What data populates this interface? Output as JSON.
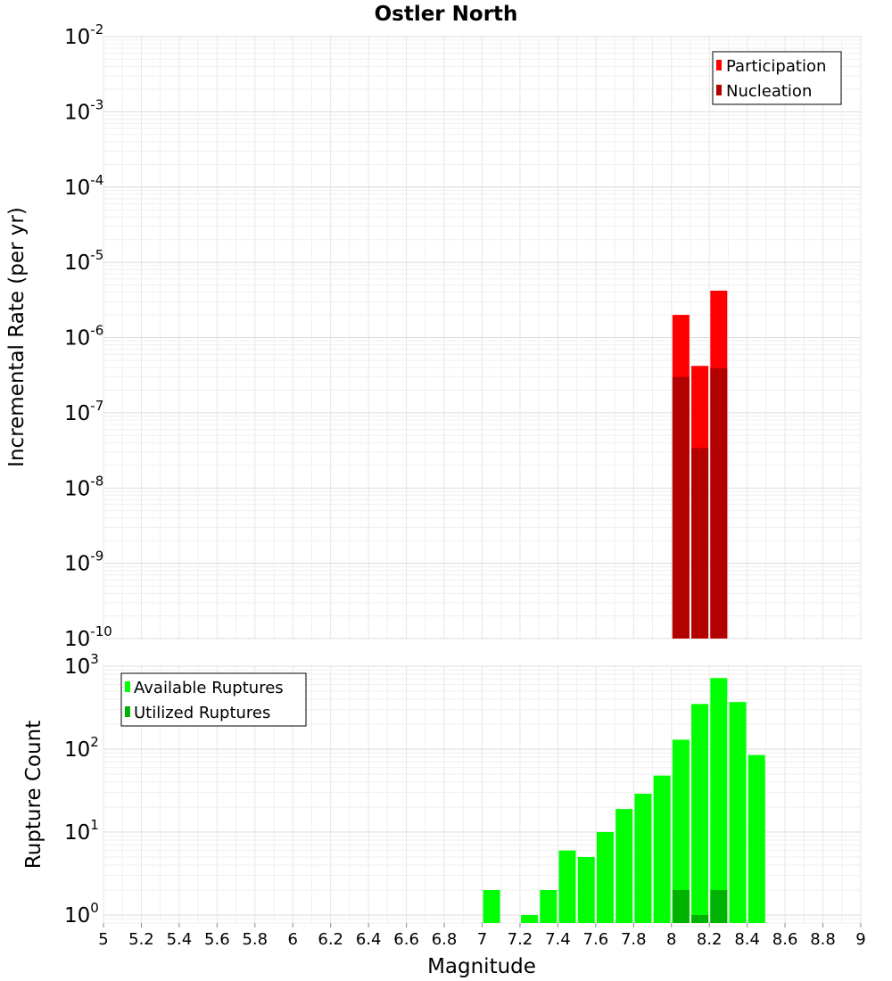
{
  "chart_data": [
    {
      "type": "bar",
      "title": "Ostler North",
      "xlabel": "Magnitude",
      "ylabel": "Incremental Rate (per yr)",
      "xlim": [
        5,
        9
      ],
      "ylim": [
        1e-10,
        0.01
      ],
      "yscale": "log",
      "ytick_base": "10",
      "ytick_exponents": [
        "-2",
        "-3",
        "-4",
        "-5",
        "-6",
        "-7",
        "-8",
        "-9",
        "-10"
      ],
      "grid": true,
      "legend": {
        "position": "top-right",
        "entries": [
          "Participation",
          "Nucleation"
        ]
      },
      "series": [
        {
          "name": "Participation",
          "color": "#ff0000",
          "x": [
            8.05,
            8.15,
            8.25
          ],
          "values": [
            2e-06,
            4.2e-07,
            4.2e-06
          ]
        },
        {
          "name": "Nucleation",
          "color": "#b30000",
          "x": [
            8.05,
            8.15,
            8.25
          ],
          "values": [
            3e-07,
            3.4e-08,
            3.9e-07
          ]
        }
      ]
    },
    {
      "type": "bar",
      "xlabel": "Magnitude",
      "ylabel": "Rupture Count",
      "xlim": [
        5,
        9
      ],
      "ylim": [
        0.8,
        1000
      ],
      "yscale": "log",
      "ytick_base": "10",
      "ytick_exponents": [
        "3",
        "2",
        "1",
        "0"
      ],
      "xticks": [
        "5",
        "5.2",
        "5.4",
        "5.6",
        "5.8",
        "6",
        "6.2",
        "6.4",
        "6.6",
        "6.8",
        "7",
        "7.2",
        "7.4",
        "7.6",
        "7.8",
        "8",
        "8.2",
        "8.4",
        "8.6",
        "8.8",
        "9"
      ],
      "grid": true,
      "legend": {
        "position": "top-left",
        "entries": [
          "Available Ruptures",
          "Utilized Ruptures"
        ]
      },
      "series": [
        {
          "name": "Available Ruptures",
          "color": "#00ff00",
          "x": [
            7.05,
            7.25,
            7.35,
            7.45,
            7.55,
            7.65,
            7.75,
            7.85,
            7.95,
            8.05,
            8.15,
            8.25,
            8.35,
            8.45
          ],
          "values": [
            2,
            1,
            2,
            6,
            5,
            10,
            19,
            29,
            48,
            130,
            350,
            720,
            370,
            85
          ]
        },
        {
          "name": "Utilized Ruptures",
          "color": "#00b300",
          "x": [
            8.05,
            8.15,
            8.25
          ],
          "values": [
            2,
            1,
            2
          ]
        }
      ]
    }
  ]
}
